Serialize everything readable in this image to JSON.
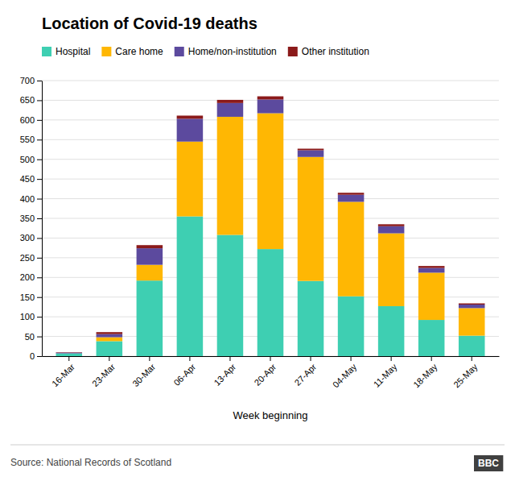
{
  "chart_data": {
    "type": "bar",
    "stacked": true,
    "title": "Location of Covid-19 deaths",
    "xlabel": "Week beginning",
    "categories": [
      "16-Mar",
      "23-Mar",
      "30-Mar",
      "06-Apr",
      "13-Apr",
      "20-Apr",
      "27-Apr",
      "04-May",
      "11-May",
      "18-May",
      "25-May"
    ],
    "series": [
      {
        "name": "Hospital",
        "color": "#3ecfb2",
        "values": [
          7,
          38,
          192,
          355,
          308,
          272,
          191,
          152,
          127,
          92,
          52
        ]
      },
      {
        "name": "Care home",
        "color": "#ffb703",
        "values": [
          0,
          10,
          40,
          190,
          300,
          345,
          315,
          240,
          185,
          120,
          70
        ]
      },
      {
        "name": "Home/non-institution",
        "color": "#5c4a9e",
        "values": [
          2,
          8,
          42,
          58,
          35,
          35,
          17,
          18,
          18,
          12,
          9
        ]
      },
      {
        "name": "Other institution",
        "color": "#8b1a1a",
        "values": [
          1,
          5,
          8,
          8,
          8,
          8,
          4,
          5,
          5,
          5,
          3
        ]
      }
    ],
    "ylim": [
      0,
      700
    ],
    "yticks": [
      0,
      50,
      100,
      150,
      200,
      250,
      300,
      350,
      400,
      450,
      500,
      550,
      600,
      650,
      700
    ],
    "grid": true,
    "legend": "upper left",
    "annotations": [
      "Source: National Records of Scotland",
      "BBC"
    ]
  }
}
